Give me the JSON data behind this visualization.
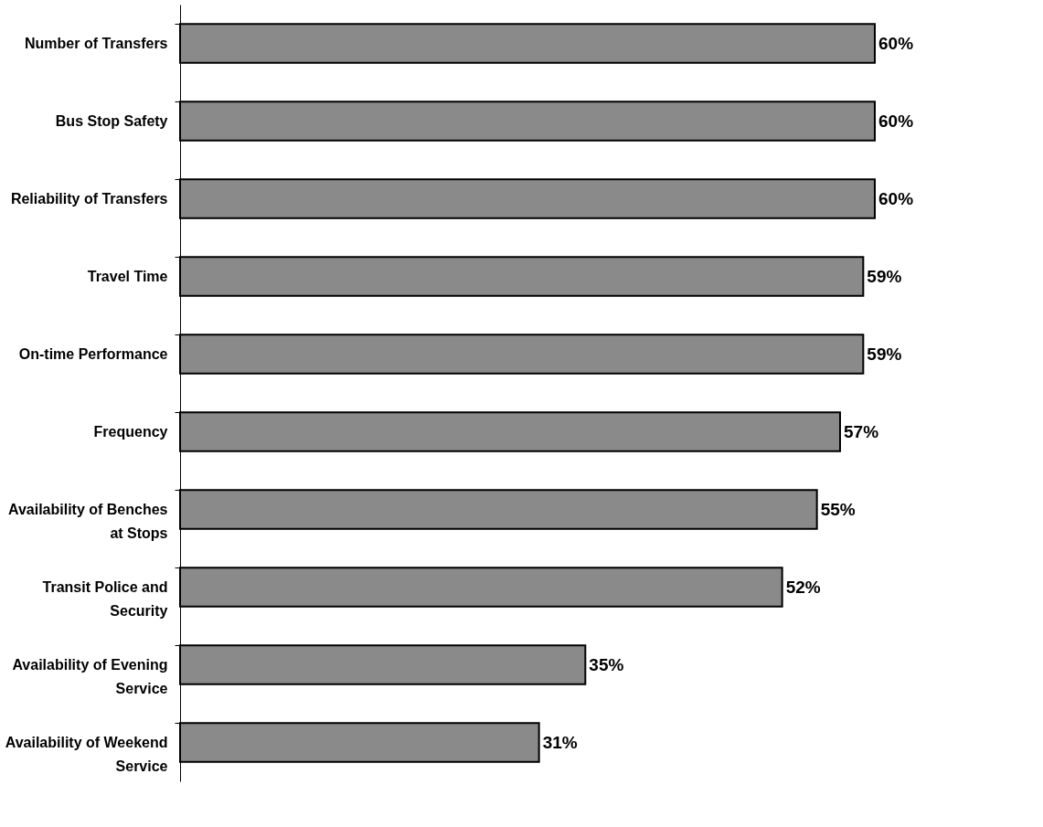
{
  "chart_data": {
    "type": "bar",
    "orientation": "horizontal",
    "categories": [
      "Number of Transfers",
      "Bus Stop Safety",
      "Reliability of Transfers",
      "Travel Time",
      "On-time Performance",
      "Frequency",
      "Availability of Benches at Stops",
      "Transit Police and Security",
      "Availability of Evening Service",
      "Availability of Weekend Service"
    ],
    "values": [
      60,
      60,
      60,
      59,
      59,
      57,
      55,
      52,
      35,
      31
    ],
    "value_labels": [
      "60%",
      "60%",
      "60%",
      "59%",
      "59%",
      "57%",
      "55%",
      "52%",
      "35%",
      "31%"
    ],
    "color": "#8a8a8a",
    "grid": false,
    "tick_labels": "y"
  }
}
